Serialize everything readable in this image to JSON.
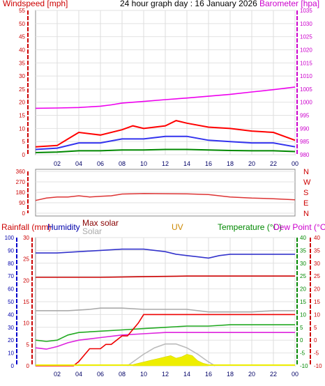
{
  "chart_data": [
    {
      "type": "line",
      "title": "24 hour graph day : 16 January 2026",
      "left_axis_label": "Windspeed [mph]",
      "right_axis_label": "Barometer [hpa]",
      "x_ticks": [
        "02",
        "04",
        "06",
        "08",
        "10",
        "12",
        "14",
        "16",
        "18",
        "20",
        "22",
        "00"
      ],
      "ylim_left": [
        0,
        55
      ],
      "yticks_left": [
        0,
        5,
        10,
        15,
        20,
        25,
        30,
        35,
        40,
        45,
        50,
        55
      ],
      "ylim_right": [
        980,
        1035
      ],
      "yticks_right": [
        980,
        985,
        990,
        995,
        1000,
        1005,
        1010,
        1015,
        1020,
        1025,
        1030,
        1035
      ],
      "series": [
        {
          "key": "barometer",
          "axis": "right",
          "color": "#ee00ee",
          "x": [
            0,
            2,
            4,
            6,
            7,
            8,
            10,
            12,
            14,
            16,
            18,
            20,
            22,
            24
          ],
          "y": [
            997.7,
            997.8,
            998,
            998.5,
            999,
            999.7,
            1000.3,
            1001,
            1001.6,
            1002.3,
            1003,
            1003.9,
            1004.8,
            1005.8
          ]
        },
        {
          "key": "gust",
          "axis": "left",
          "color": "#ff0000",
          "x": [
            0,
            2,
            3,
            4,
            6,
            8,
            9,
            10,
            12,
            13,
            14,
            16,
            18,
            20,
            22,
            24
          ],
          "y": [
            3,
            3.5,
            6,
            8.5,
            7.5,
            9.5,
            11,
            10,
            11,
            13,
            12,
            10.5,
            10,
            9,
            8.5,
            5.5
          ]
        },
        {
          "key": "avg",
          "axis": "left",
          "color": "#3333ee",
          "x": [
            0,
            2,
            4,
            6,
            8,
            10,
            12,
            14,
            16,
            18,
            20,
            22,
            24
          ],
          "y": [
            2,
            2.5,
            4.5,
            4.5,
            6,
            6,
            7,
            7,
            5.5,
            5,
            4.5,
            4.5,
            3
          ]
        },
        {
          "key": "min",
          "axis": "left",
          "color": "#008800",
          "x": [
            0,
            2,
            4,
            6,
            8,
            10,
            12,
            14,
            16,
            18,
            20,
            22,
            24
          ],
          "y": [
            0.8,
            1,
            1.5,
            1.5,
            1.8,
            1.8,
            2,
            2,
            1.8,
            1.6,
            1.5,
            1.5,
            1.2
          ]
        }
      ]
    },
    {
      "type": "line",
      "x_ticks": [
        "02",
        "04",
        "06",
        "08",
        "10",
        "12",
        "14",
        "16",
        "18",
        "20",
        "22",
        "00"
      ],
      "ylim": [
        0,
        360
      ],
      "yticks": [
        0,
        90,
        180,
        270,
        360
      ],
      "direction_labels": [
        "N",
        "W",
        "S",
        "E",
        "N"
      ],
      "series": [
        {
          "key": "wind_direction",
          "color": "#dd3333",
          "x": [
            0,
            1,
            2,
            3,
            4,
            5,
            6,
            7,
            8,
            10,
            12,
            14,
            16,
            17,
            18,
            20,
            22,
            24
          ],
          "y": [
            110,
            130,
            140,
            140,
            150,
            140,
            145,
            150,
            165,
            170,
            168,
            167,
            160,
            150,
            140,
            130,
            125,
            115
          ]
        }
      ]
    },
    {
      "type": "line",
      "labels": {
        "rainfall": "Rainfall (mm)",
        "humidity": "Humidity",
        "max_solar": "Max solar",
        "solar": "Solar",
        "uv": "UV",
        "temperature": "Temperature (°C)",
        "dew_point": "Dew Point (°C)"
      },
      "x_ticks": [
        "02",
        "04",
        "06",
        "08",
        "10",
        "12",
        "14",
        "16",
        "18",
        "20",
        "22",
        "00"
      ],
      "ylim_humidity": [
        0,
        100
      ],
      "yticks_humidity": [
        0,
        10,
        20,
        30,
        40,
        50,
        60,
        70,
        80,
        90,
        100
      ],
      "ylim_rain": [
        0,
        30
      ],
      "yticks_rain": [
        0,
        5,
        10,
        15,
        20,
        25,
        30
      ],
      "ylim_temp": [
        -10,
        40
      ],
      "yticks_temp": [
        -10,
        -5,
        0,
        5,
        10,
        15,
        20,
        25,
        30,
        35,
        40
      ],
      "series": [
        {
          "key": "humidity",
          "axis": "humidity",
          "color": "#3333cc",
          "x": [
            0,
            2,
            4,
            6,
            8,
            10,
            12,
            13,
            14,
            15,
            16,
            17,
            18,
            20,
            22,
            24
          ],
          "y": [
            88,
            88,
            89,
            90,
            91,
            91,
            89,
            87,
            86,
            85,
            84,
            86,
            87,
            87,
            87,
            87
          ]
        },
        {
          "key": "rain_flat",
          "axis": "humidity",
          "color": "#cc0000",
          "x": [
            0,
            6,
            10,
            14,
            18,
            24
          ],
          "y": [
            69,
            69,
            69.5,
            70,
            70,
            70
          ]
        },
        {
          "key": "solar_grey",
          "axis": "humidity",
          "color": "#aaaaaa",
          "x": [
            0,
            3,
            5,
            6,
            8,
            10,
            12,
            14,
            16,
            18,
            20,
            22,
            24
          ],
          "y": [
            43,
            43,
            44,
            45,
            45,
            44,
            44,
            44,
            42,
            42,
            42,
            43,
            43
          ]
        },
        {
          "key": "temperature",
          "axis": "temp",
          "color": "#22aa22",
          "x": [
            0,
            1,
            2,
            3,
            4,
            6,
            8,
            10,
            12,
            14,
            16,
            18,
            20,
            22,
            24
          ],
          "y": [
            0,
            -0.5,
            0,
            2,
            3,
            3.5,
            4,
            4.5,
            5,
            5.5,
            5.5,
            6,
            6,
            6,
            6
          ]
        },
        {
          "key": "dew_point",
          "axis": "temp",
          "color": "#dd22dd",
          "x": [
            0,
            1,
            2,
            3,
            4,
            6,
            8,
            10,
            12,
            14,
            16,
            18,
            20,
            22,
            24
          ],
          "y": [
            -3,
            -3.5,
            -2.5,
            -1,
            0,
            1,
            2,
            2.5,
            3,
            3,
            3,
            3,
            3,
            3,
            3
          ]
        },
        {
          "key": "rainfall",
          "axis": "rain",
          "color": "#ee0000",
          "x": [
            0,
            3.5,
            4,
            5,
            6,
            6.5,
            7,
            8,
            8.5,
            9.5,
            10,
            12,
            16,
            18,
            20,
            22,
            24
          ],
          "y": [
            0,
            0,
            1,
            4,
            4,
            5,
            5,
            7,
            7,
            10,
            12,
            12,
            12,
            12,
            12,
            12,
            12
          ]
        },
        {
          "key": "max_solar",
          "axis": "humidity",
          "color": "#bbbbbb",
          "x": [
            8.5,
            9,
            10,
            11,
            12,
            13,
            14,
            15,
            16,
            16.6
          ],
          "y": [
            0,
            3,
            9,
            14,
            17,
            17,
            14,
            9,
            3,
            0
          ]
        },
        {
          "key": "solar",
          "axis": "humidity",
          "color": "#eeee00",
          "x": [
            9,
            9.5,
            10,
            10.5,
            11,
            11.5,
            12,
            12.5,
            13,
            13.5,
            14,
            14.5,
            15,
            15.5,
            16
          ],
          "y": [
            1,
            2,
            3,
            4,
            5,
            6,
            7,
            8,
            6,
            7,
            9,
            8,
            4,
            2,
            1
          ]
        }
      ]
    }
  ]
}
